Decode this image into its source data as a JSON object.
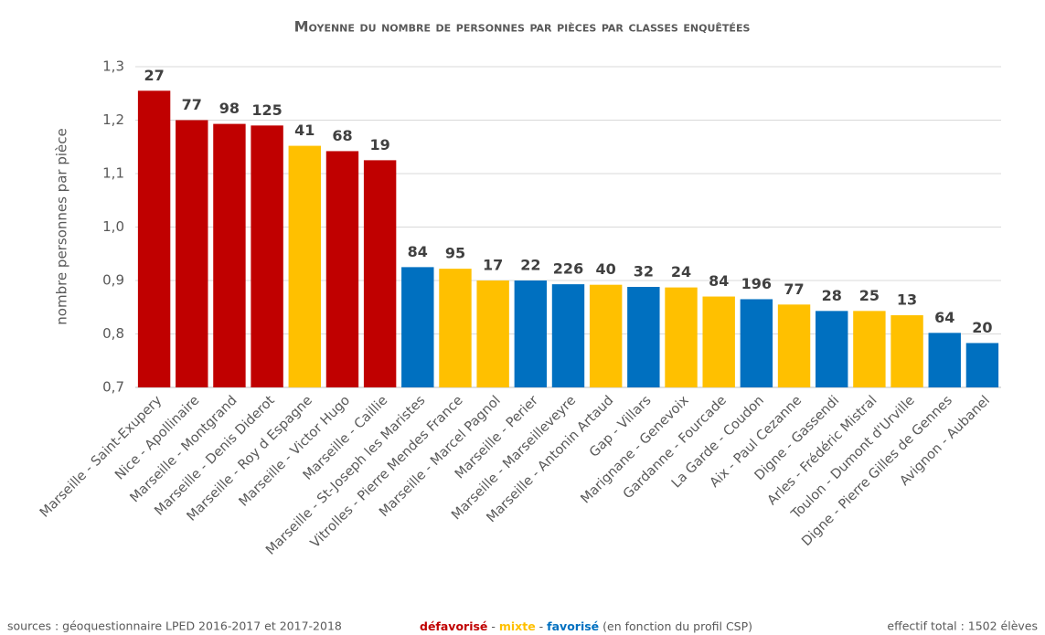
{
  "chart_data": {
    "type": "bar",
    "title": "Moyenne du nombre de personnes par pièces par classes enquêtées",
    "y_label": "nombre personnes par pièce",
    "categories": [
      "Marseille - Saint-Exupery",
      "Nice - Apollinaire",
      "Marseille - Montgrand",
      "Marseille - Denis Diderot",
      "Marseille - Roy d Espagne",
      "Marseille - Victor Hugo",
      "Marseille - Caillie",
      "Marseille - St-Joseph les Maristes",
      "Vitrolles - Pierre Mendes France",
      "Marseille - Marcel Pagnol",
      "Marseille - Perier",
      "Marseille - Marseilleveyre",
      "Marseille - Antonin Artaud",
      "Gap - Villars",
      "Marignane - Genevoix",
      "Gardanne - Fourcade",
      "La Garde - Coudon",
      "Aix - Paul Cezanne",
      "Digne - Gassendi",
      "Arles - Frédéric Mistral",
      "Toulon - Dumont d'Urville",
      "Digne - Pierre Gilles de Gennes",
      "Avignon - Aubanel"
    ],
    "values": [
      1.255,
      1.2,
      1.193,
      1.19,
      1.152,
      1.142,
      1.125,
      0.925,
      0.922,
      0.9,
      0.9,
      0.893,
      0.892,
      0.888,
      0.887,
      0.87,
      0.865,
      0.855,
      0.843,
      0.843,
      0.835,
      0.802,
      0.783
    ],
    "colors": [
      "#c00000",
      "#c00000",
      "#c00000",
      "#c00000",
      "#ffc000",
      "#c00000",
      "#c00000",
      "#0070c0",
      "#ffc000",
      "#ffc000",
      "#0070c0",
      "#0070c0",
      "#ffc000",
      "#0070c0",
      "#ffc000",
      "#ffc000",
      "#0070c0",
      "#ffc000",
      "#0070c0",
      "#ffc000",
      "#ffc000",
      "#0070c0",
      "#0070c0"
    ],
    "effectifs": [
      27,
      77,
      98,
      125,
      41,
      68,
      19,
      84,
      95,
      17,
      22,
      226,
      40,
      32,
      24,
      84,
      196,
      77,
      28,
      25,
      13,
      64,
      20
    ],
    "ylim": [
      0.7,
      1.3
    ],
    "yticks": [
      {
        "value": 0.7,
        "label": "0,7"
      },
      {
        "value": 0.8,
        "label": "0,8"
      },
      {
        "value": 0.9,
        "label": "0,9"
      },
      {
        "value": 1.0,
        "label": "1,0"
      },
      {
        "value": 1.1,
        "label": "1,1"
      },
      {
        "value": 1.2,
        "label": "1,2"
      },
      {
        "value": 1.3,
        "label": "1,3"
      }
    ],
    "grid": true,
    "legend": [
      {
        "name": "défavorisé",
        "color": "#c00000"
      },
      {
        "name": "mixte",
        "color": "#ffc000"
      },
      {
        "name": "favorisé",
        "color": "#0070c0"
      }
    ],
    "legend_separator": "-",
    "legend_note": "(en fonction du profil CSP)",
    "source": "sources : géoquestionnaire LPED 2016-2017  et 2017-2018",
    "total": "effectif total : 1502 élèves"
  }
}
